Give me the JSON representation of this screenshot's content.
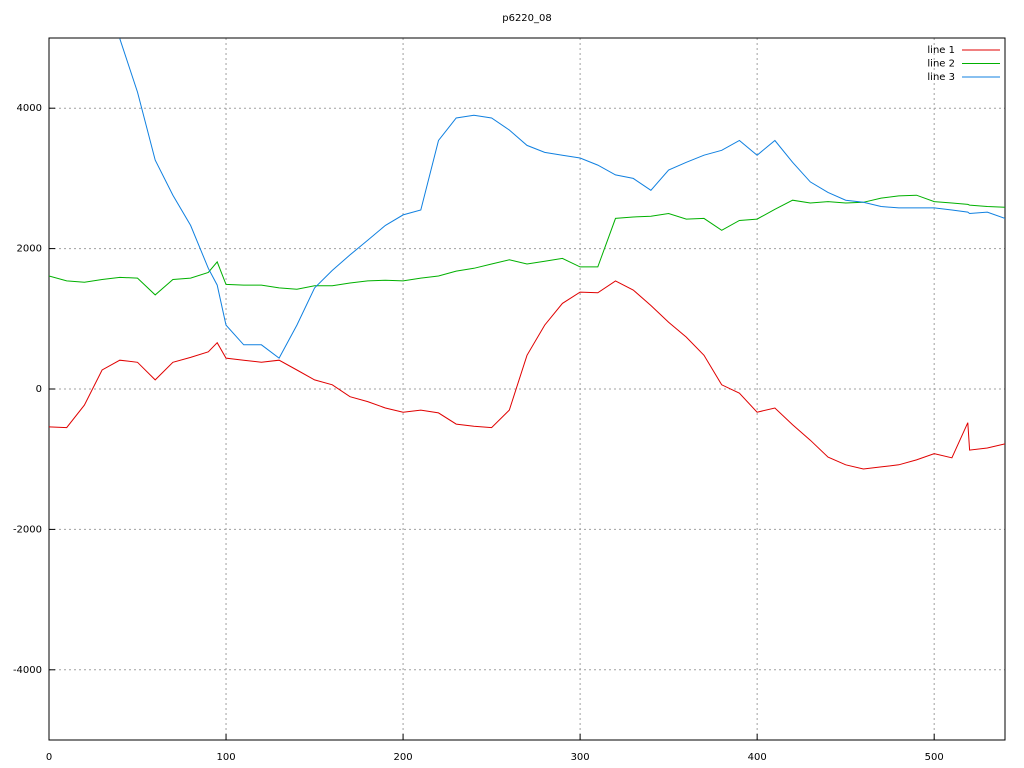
{
  "chart_data": {
    "type": "line",
    "title": "p6220_08",
    "x": [
      0,
      10,
      20,
      30,
      40,
      50,
      60,
      70,
      80,
      90,
      95,
      100,
      110,
      120,
      130,
      140,
      150,
      160,
      170,
      180,
      190,
      200,
      210,
      220,
      230,
      240,
      250,
      260,
      270,
      280,
      290,
      300,
      310,
      320,
      330,
      340,
      350,
      360,
      370,
      380,
      390,
      400,
      410,
      420,
      430,
      440,
      450,
      460,
      470,
      480,
      490,
      500,
      510,
      519,
      520,
      530,
      540
    ],
    "series": [
      {
        "name": "line 1",
        "color": "#e00000",
        "values": [
          -540,
          -550,
          -230,
          270,
          410,
          380,
          130,
          380,
          450,
          530,
          660,
          440,
          410,
          380,
          410,
          270,
          130,
          60,
          -110,
          -180,
          -270,
          -330,
          -300,
          -340,
          -500,
          -530,
          -550,
          -300,
          480,
          910,
          1220,
          1380,
          1370,
          1540,
          1410,
          1190,
          950,
          740,
          480,
          60,
          -60,
          -330,
          -270,
          -510,
          -730,
          -970,
          -1080,
          -1140,
          -1110,
          -1080,
          -1010,
          -920,
          -980,
          -480,
          -870,
          -840,
          -780
        ]
      },
      {
        "name": "line 2",
        "color": "#00b000",
        "values": [
          1610,
          1540,
          1520,
          1560,
          1590,
          1580,
          1340,
          1560,
          1580,
          1660,
          1810,
          1490,
          1480,
          1480,
          1440,
          1420,
          1470,
          1470,
          1510,
          1540,
          1550,
          1540,
          1580,
          1610,
          1680,
          1720,
          1780,
          1840,
          1780,
          1820,
          1860,
          1740,
          1740,
          2430,
          2450,
          2460,
          2500,
          2420,
          2430,
          2260,
          2400,
          2420,
          2560,
          2690,
          2650,
          2670,
          2650,
          2660,
          2720,
          2750,
          2760,
          2670,
          2650,
          2630,
          2620,
          2600,
          2590
        ]
      },
      {
        "name": "line 3",
        "color": "#1080e0",
        "values": [
          null,
          null,
          null,
          null,
          4990,
          4230,
          3260,
          2760,
          2330,
          1720,
          1480,
          910,
          630,
          630,
          440,
          910,
          1440,
          1690,
          1910,
          2120,
          2330,
          2480,
          2550,
          3540,
          3860,
          3900,
          3860,
          3690,
          3470,
          3370,
          3330,
          3290,
          3190,
          3050,
          3000,
          2830,
          3120,
          3230,
          3330,
          3400,
          3540,
          3330,
          3540,
          3230,
          2950,
          2800,
          2690,
          2660,
          2600,
          2580,
          2580,
          2580,
          2550,
          2520,
          2500,
          2520,
          2430
        ]
      }
    ],
    "xlim": [
      0,
      540
    ],
    "xticks": [
      0,
      100,
      200,
      300,
      400,
      500
    ],
    "ylim": [
      -5000,
      5000
    ],
    "yticks": [
      -4000,
      -2000,
      0,
      2000,
      4000
    ],
    "grid": true,
    "legend": "top-right"
  }
}
